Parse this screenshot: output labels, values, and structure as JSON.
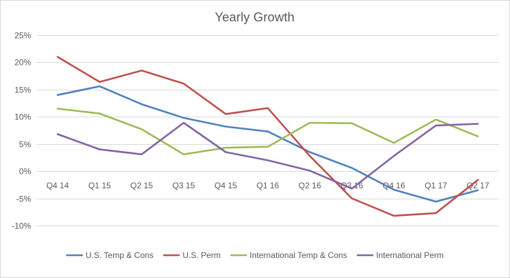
{
  "chart_data": {
    "type": "line",
    "title": "Yearly Growth",
    "xlabel": "",
    "ylabel": "",
    "categories": [
      "Q4 14",
      "Q1 15",
      "Q2 15",
      "Q3 15",
      "Q4 15",
      "Q1 16",
      "Q2 16",
      "Q3 16",
      "Q4 16",
      "Q1 17",
      "Q2 17"
    ],
    "ylim": [
      -0.1,
      0.25
    ],
    "yticks": [
      0.25,
      0.2,
      0.15,
      0.1,
      0.05,
      0.0,
      -0.05,
      -0.1
    ],
    "ytick_labels": [
      "25%",
      "20%",
      "15%",
      "10%",
      "5%",
      "0%",
      "-5%",
      "-10%"
    ],
    "grid": true,
    "legend_position": "bottom",
    "series": [
      {
        "name": "U.S. Temp & Cons",
        "color": "#4f81bd",
        "values": [
          0.14,
          0.156,
          0.123,
          0.098,
          0.082,
          0.073,
          0.035,
          0.006,
          -0.034,
          -0.056,
          -0.035
        ]
      },
      {
        "name": "U.S. Perm",
        "color": "#c0504d",
        "values": [
          0.21,
          0.164,
          0.185,
          0.161,
          0.105,
          0.116,
          0.028,
          -0.05,
          -0.082,
          -0.077,
          -0.016
        ]
      },
      {
        "name": "International Temp & Cons",
        "color": "#9bbb59",
        "values": [
          0.115,
          0.106,
          0.077,
          0.031,
          0.043,
          0.045,
          0.089,
          0.088,
          0.052,
          0.095,
          0.064
        ]
      },
      {
        "name": "International Perm",
        "color": "#8064a2",
        "values": [
          0.068,
          0.04,
          0.031,
          0.089,
          0.035,
          0.02,
          0.001,
          -0.032,
          0.028,
          0.084,
          0.087
        ]
      }
    ]
  }
}
